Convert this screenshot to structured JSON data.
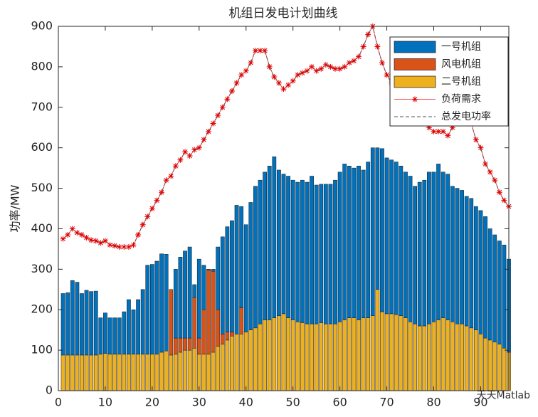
{
  "chart_data": {
    "type": "stacked_bar_line",
    "title": "机组日发电计划曲线",
    "y_label": "功率/MW",
    "watermark": "天天Matlab",
    "x": [
      1,
      2,
      3,
      4,
      5,
      6,
      7,
      8,
      9,
      10,
      11,
      12,
      13,
      14,
      15,
      16,
      17,
      18,
      19,
      20,
      21,
      22,
      23,
      24,
      25,
      26,
      27,
      28,
      29,
      30,
      31,
      32,
      33,
      34,
      35,
      36,
      37,
      38,
      39,
      40,
      41,
      42,
      43,
      44,
      45,
      46,
      47,
      48,
      49,
      50,
      51,
      52,
      53,
      54,
      55,
      56,
      57,
      58,
      59,
      60,
      61,
      62,
      63,
      64,
      65,
      66,
      67,
      68,
      69,
      70,
      71,
      72,
      73,
      74,
      75,
      76,
      77,
      78,
      79,
      80,
      81,
      82,
      83,
      84,
      85,
      86,
      87,
      88,
      89,
      90,
      91,
      92,
      93,
      94,
      95,
      96
    ],
    "xlim": [
      0,
      96
    ],
    "xticks": [
      0,
      10,
      20,
      30,
      40,
      50,
      60,
      70,
      80,
      90
    ],
    "ylim": [
      0,
      900
    ],
    "yticks": [
      0,
      100,
      200,
      300,
      400,
      500,
      600,
      700,
      800,
      900
    ],
    "grid": false,
    "legend_position": "upper right",
    "series": [
      {
        "name": "一号机组",
        "kind": "bar",
        "color": "#0072BD",
        "values": [
          152,
          154,
          184,
          180,
          152,
          160,
          157,
          158,
          90,
          100,
          90,
          90,
          90,
          105,
          135,
          110,
          135,
          160,
          220,
          222,
          230,
          243,
          239,
          0,
          170,
          200,
          215,
          225,
          32,
          195,
          110,
          2,
          5,
          155,
          240,
          260,
          275,
          318,
          250,
          265,
          315,
          350,
          355,
          365,
          380,
          398,
          360,
          345,
          350,
          345,
          345,
          352,
          350,
          365,
          343,
          342,
          345,
          345,
          355,
          370,
          385,
          375,
          370,
          380,
          365,
          385,
          415,
          350,
          403,
          385,
          380,
          377,
          370,
          360,
          360,
          340,
          355,
          360,
          375,
          370,
          385,
          360,
          360,
          335,
          335,
          330,
          320,
          320,
          305,
          305,
          300,
          275,
          265,
          255,
          255,
          230
        ]
      },
      {
        "name": "风电机组",
        "kind": "bar",
        "color": "#D95319",
        "values": [
          0,
          0,
          0,
          0,
          0,
          0,
          0,
          0,
          0,
          0,
          0,
          0,
          0,
          0,
          0,
          0,
          0,
          0,
          0,
          0,
          0,
          0,
          0,
          162,
          40,
          35,
          30,
          30,
          125,
          40,
          110,
          208,
          200,
          90,
          25,
          20,
          10,
          0,
          65,
          0,
          0,
          0,
          0,
          0,
          0,
          0,
          0,
          0,
          0,
          0,
          0,
          0,
          0,
          0,
          0,
          0,
          0,
          0,
          0,
          0,
          0,
          0,
          0,
          0,
          0,
          0,
          0,
          0,
          0,
          0,
          0,
          0,
          0,
          0,
          0,
          0,
          0,
          0,
          0,
          0,
          0,
          0,
          0,
          0,
          0,
          0,
          0,
          0,
          0,
          0,
          0,
          0,
          0,
          0,
          0,
          0
        ]
      },
      {
        "name": "二号机组",
        "kind": "bar",
        "color": "#EDB120",
        "values": [
          88,
          88,
          88,
          88,
          88,
          88,
          88,
          88,
          90,
          92,
          90,
          90,
          90,
          90,
          90,
          90,
          90,
          90,
          90,
          90,
          90,
          95,
          98,
          88,
          90,
          95,
          100,
          100,
          105,
          90,
          90,
          90,
          95,
          110,
          115,
          125,
          135,
          140,
          140,
          145,
          150,
          155,
          165,
          175,
          175,
          180,
          185,
          190,
          180,
          175,
          170,
          168,
          165,
          165,
          165,
          168,
          165,
          165,
          165,
          170,
          175,
          180,
          180,
          175,
          180,
          180,
          185,
          250,
          195,
          190,
          190,
          188,
          185,
          180,
          170,
          165,
          160,
          160,
          165,
          170,
          175,
          180,
          175,
          170,
          165,
          165,
          160,
          155,
          150,
          140,
          130,
          125,
          120,
          115,
          105,
          95
        ]
      },
      {
        "name": "负荷需求",
        "kind": "line",
        "color": "#FF4D4D",
        "values": [
          375,
          385,
          400,
          390,
          385,
          378,
          372,
          370,
          365,
          370,
          360,
          358,
          355,
          355,
          355,
          360,
          385,
          410,
          430,
          450,
          470,
          490,
          520,
          530,
          555,
          570,
          590,
          580,
          595,
          600,
          620,
          640,
          660,
          680,
          700,
          720,
          740,
          760,
          780,
          790,
          810,
          840,
          840,
          840,
          800,
          775,
          760,
          745,
          755,
          765,
          780,
          785,
          790,
          800,
          790,
          795,
          805,
          800,
          795,
          795,
          800,
          810,
          815,
          825,
          850,
          880,
          900,
          850,
          810,
          780,
          760,
          740,
          720,
          700,
          690,
          680,
          670,
          660,
          650,
          640,
          640,
          640,
          630,
          650,
          680,
          700,
          690,
          660,
          620,
          600,
          560,
          540,
          520,
          490,
          470,
          455
        ]
      },
      {
        "name": "总发电功率",
        "kind": "dashed",
        "color": "#555555",
        "values": [
          375,
          385,
          400,
          390,
          385,
          378,
          372,
          370,
          365,
          370,
          360,
          358,
          355,
          355,
          355,
          360,
          385,
          410,
          430,
          450,
          470,
          490,
          520,
          530,
          555,
          570,
          590,
          580,
          595,
          600,
          620,
          640,
          660,
          680,
          700,
          720,
          740,
          760,
          780,
          790,
          810,
          840,
          840,
          840,
          800,
          775,
          760,
          745,
          755,
          765,
          780,
          785,
          790,
          800,
          790,
          795,
          805,
          800,
          795,
          795,
          800,
          810,
          815,
          825,
          850,
          880,
          900,
          850,
          810,
          780,
          760,
          740,
          720,
          700,
          690,
          680,
          670,
          660,
          650,
          640,
          640,
          640,
          630,
          650,
          680,
          700,
          690,
          660,
          620,
          600,
          560,
          540,
          520,
          490,
          470,
          455
        ]
      }
    ]
  }
}
